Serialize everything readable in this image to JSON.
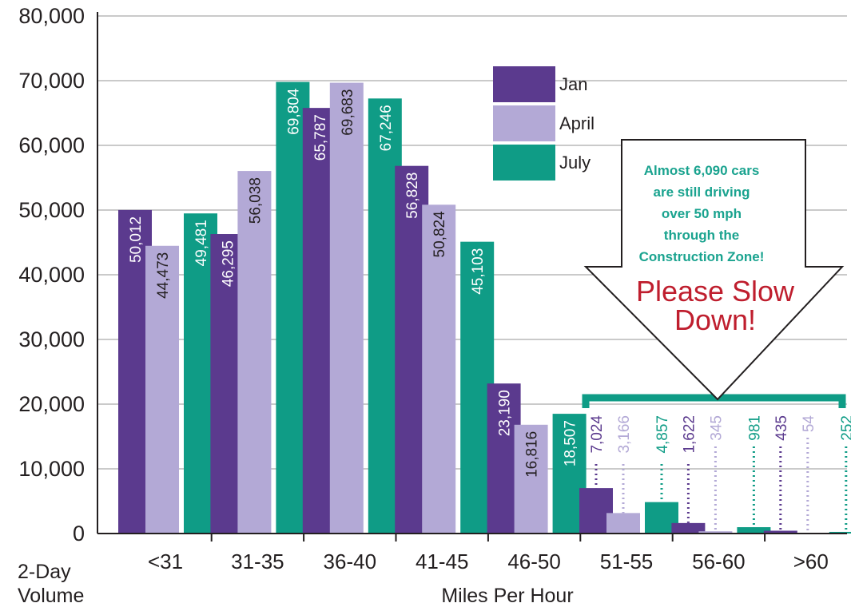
{
  "chart_data": {
    "type": "bar",
    "categories": [
      "<31",
      "31-35",
      "36-40",
      "41-45",
      "46-50",
      "51-55",
      "56-60",
      ">60"
    ],
    "series": [
      {
        "name": "Jan",
        "values": [
          50012,
          46295,
          65787,
          56828,
          23190,
          7024,
          1622,
          435
        ],
        "labels": [
          "50,012",
          "46,295",
          "65,787",
          "56,828",
          "23,190",
          "7,024",
          "1,622",
          "435"
        ]
      },
      {
        "name": "April",
        "values": [
          44473,
          56038,
          69683,
          50824,
          16816,
          3166,
          345,
          54
        ],
        "labels": [
          "44,473",
          "56,038",
          "69,683",
          "50,824",
          "16,816",
          "3,166",
          "345",
          "54"
        ]
      },
      {
        "name": "July",
        "values": [
          49481,
          69804,
          67246,
          45103,
          18507,
          4857,
          981,
          252
        ],
        "labels": [
          "49,481",
          "69,804",
          "67,246",
          "45,103",
          "18,507",
          "4,857",
          "981",
          "252"
        ]
      }
    ],
    "ylim": [
      0,
      80000
    ],
    "yticks": [
      0,
      10000,
      20000,
      30000,
      40000,
      50000,
      60000,
      70000,
      80000
    ],
    "ytick_labels": [
      "0",
      "10,000",
      "20,000",
      "30,000",
      "40,000",
      "50,000",
      "60,000",
      "70,000",
      "80,000"
    ],
    "ylabel_lines": [
      "2-Day",
      "Volume"
    ],
    "xlabel": "Miles Per Hour",
    "grid": true,
    "legend_position": "top-center",
    "annotation": {
      "lines": [
        "Almost 6,090 cars",
        "are still driving",
        "over 50 mph",
        "through the",
        "Construction Zone!"
      ],
      "callout_lines": [
        "Please Slow",
        "Down!"
      ]
    }
  },
  "colors": {
    "Jan": "#5b3a8e",
    "April": "#b3a9d6",
    "July": "#0f9c86",
    "grid": "#b8b8b8",
    "bracket": "#0f9c86",
    "callout_text": "#bf1e2e",
    "note_text": "#1aa38f"
  }
}
